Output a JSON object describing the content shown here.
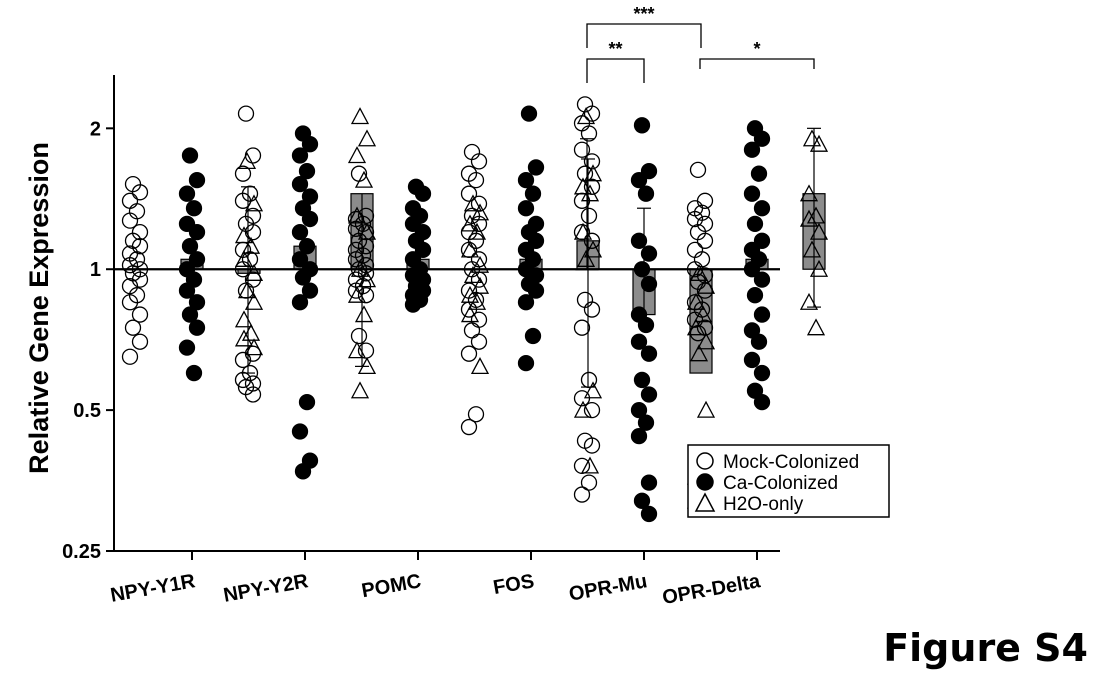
{
  "figure_label": "Figure S4",
  "chart_data": {
    "type": "scatter",
    "ylabel": "Relative Gene Expression",
    "y_scale": "log2",
    "ylim": [
      0.25,
      2.6
    ],
    "yticks": [
      0.25,
      0.5,
      1,
      2
    ],
    "ytick_labels": [
      "0.25",
      "0.5",
      "1",
      "2"
    ],
    "reference_line": 1,
    "categories": [
      "NPY-Y1R",
      "NPY-Y2R",
      "POMC",
      "FOS",
      "OPR-Mu",
      "OPR-Delta"
    ],
    "legend": {
      "position": "bottom-right",
      "entries": [
        "Mock-Colonized",
        "Ca-Colonized",
        "H2O-only"
      ]
    },
    "series": [
      {
        "name": "Mock-Colonized",
        "marker": "open-circle",
        "bar": [
          1.0,
          1.0,
          1.0,
          1.0,
          1.0,
          1.0
        ],
        "err_low": [
          null,
          0.6,
          null,
          null,
          null,
          null
        ],
        "err_high": [
          null,
          1.5,
          null,
          null,
          1.9,
          null
        ],
        "points": [
          [
            1.52,
            1.46,
            1.4,
            1.33,
            1.27,
            1.2,
            1.15,
            1.12,
            1.08,
            1.05,
            1.02,
            1.0,
            0.98,
            0.95,
            0.92,
            0.88,
            0.85,
            0.8,
            0.75,
            0.7,
            0.65
          ],
          [
            2.15,
            1.75,
            1.6,
            1.45,
            1.4,
            1.3,
            1.25,
            1.2,
            1.1,
            1.05,
            1.0,
            0.95,
            0.9,
            0.66,
            0.64,
            0.6,
            0.58,
            0.57,
            0.56,
            0.54
          ],
          [
            1.6,
            1.3,
            1.28,
            1.25,
            1.22,
            1.2,
            1.15,
            1.12,
            1.1,
            1.07,
            1.05,
            1.02,
            1.0,
            0.98,
            0.95,
            0.92,
            0.9,
            0.88,
            0.72,
            0.67
          ],
          [
            1.78,
            1.7,
            1.6,
            1.55,
            1.45,
            1.38,
            1.3,
            1.25,
            1.2,
            1.15,
            1.1,
            1.05,
            1.0,
            0.95,
            0.9,
            0.86,
            0.82,
            0.78,
            0.74,
            0.7,
            0.66,
            0.49,
            0.46
          ],
          [
            2.25,
            2.15,
            2.05,
            1.95,
            1.8,
            1.7,
            1.6,
            1.5,
            1.4,
            1.3,
            1.2,
            1.15,
            0.86,
            0.82,
            0.75,
            0.58,
            0.53,
            0.5,
            0.43,
            0.42,
            0.38,
            0.35,
            0.33
          ],
          [
            1.63,
            1.4,
            1.35,
            1.32,
            1.28,
            1.25,
            1.2,
            1.15,
            1.1,
            1.05,
            1.0,
            0.97,
            0.94,
            0.9,
            0.85,
            0.82,
            0.78,
            0.75,
            0.73
          ]
        ]
      },
      {
        "name": "Ca-Colonized",
        "marker": "filled-circle",
        "bar": [
          1.05,
          1.12,
          1.05,
          1.05,
          0.8,
          1.05
        ],
        "err_low": [
          null,
          null,
          null,
          null,
          null,
          null
        ],
        "err_high": [
          null,
          null,
          null,
          null,
          1.35,
          null
        ],
        "points": [
          [
            1.75,
            1.55,
            1.45,
            1.35,
            1.25,
            1.2,
            1.12,
            1.05,
            1.0,
            0.95,
            0.9,
            0.85,
            0.8,
            0.75,
            0.68,
            0.6
          ],
          [
            1.95,
            1.85,
            1.75,
            1.62,
            1.52,
            1.43,
            1.35,
            1.28,
            1.2,
            1.12,
            1.05,
            1.0,
            0.96,
            0.9,
            0.85,
            0.52,
            0.45,
            0.39,
            0.37
          ],
          [
            1.5,
            1.45,
            1.35,
            1.3,
            1.25,
            1.2,
            1.15,
            1.1,
            1.05,
            1.0,
            0.97,
            0.95,
            0.92,
            0.9,
            0.88,
            0.86,
            0.84
          ],
          [
            2.15,
            1.65,
            1.55,
            1.45,
            1.35,
            1.25,
            1.2,
            1.15,
            1.1,
            1.05,
            1.0,
            0.97,
            0.93,
            0.9,
            0.85,
            0.72,
            0.63
          ],
          [
            2.03,
            1.62,
            1.55,
            1.45,
            1.15,
            1.08,
            1.0,
            0.93,
            0.8,
            0.76,
            0.7,
            0.66,
            0.58,
            0.54,
            0.5,
            0.47,
            0.44,
            0.35,
            0.32,
            0.3
          ],
          [
            2.0,
            1.9,
            1.8,
            1.6,
            1.45,
            1.35,
            1.25,
            1.15,
            1.1,
            1.05,
            1.0,
            0.95,
            0.88,
            0.8,
            0.74,
            0.7,
            0.64,
            0.6,
            0.55,
            0.52
          ]
        ]
      },
      {
        "name": "H2O-only",
        "marker": "open-triangle",
        "bar": [
          0.98,
          1.45,
          1.0,
          1.15,
          0.6,
          1.45
        ],
        "err_low": [
          null,
          0.62,
          null,
          0.56,
          null,
          0.83
        ],
        "err_high": [
          null,
          null,
          null,
          1.72,
          null,
          2.0
        ],
        "points": [
          [
            1.7,
            1.38,
            1.18,
            1.12,
            1.05,
            0.98,
            0.9,
            0.85,
            0.78,
            0.73,
            0.71,
            0.68
          ],
          [
            2.12,
            1.9,
            1.75,
            1.55,
            1.3,
            1.2,
            1.0,
            0.95,
            0.88,
            0.8,
            0.67,
            0.62,
            0.55
          ],
          [
            1.38,
            1.32,
            1.25,
            1.2,
            1.1,
            1.02,
            0.97,
            0.92,
            0.88,
            0.85,
            0.8,
            0.62
          ],
          [
            2.12,
            1.6,
            1.5,
            1.45,
            1.2,
            1.1,
            1.05,
            0.55,
            0.5,
            0.38
          ],
          [
            0.98,
            0.92,
            0.85,
            0.8,
            0.75,
            0.7,
            0.66,
            0.5,
            0.36,
            0.34,
            0.32
          ],
          [
            1.9,
            1.85,
            1.45,
            1.3,
            1.28,
            1.2,
            1.1,
            1.0,
            0.85,
            0.75
          ]
        ]
      }
    ],
    "significance": [
      {
        "from": 4,
        "from_series": 0,
        "to": 4,
        "to_series": 1,
        "label": "**"
      },
      {
        "from": 4,
        "from_series": 0,
        "to": 4,
        "to_series": 2,
        "label": "***"
      },
      {
        "from": 5,
        "from_series": 0,
        "to": 5,
        "to_series": 2,
        "label": "*"
      }
    ]
  }
}
